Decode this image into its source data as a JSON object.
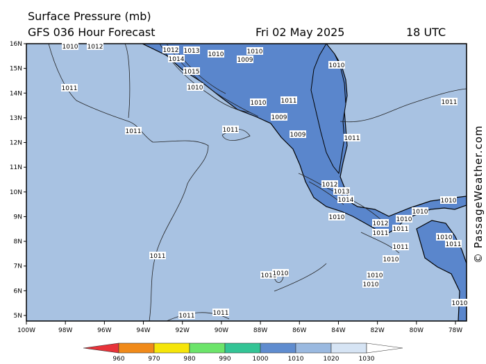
{
  "title": {
    "line1": "Surface Pressure (mb)",
    "line2": "GFS 036 Hour Forecast",
    "date": "Fri 02 May 2025",
    "time": "18 UTC"
  },
  "credit": "© PassageWeather.com",
  "colors": {
    "ocean": "#a8c2e2",
    "land": "#5a86cc",
    "coast": "#000000",
    "isobar": "#222222"
  },
  "lat_labels": [
    "16N",
    "15N",
    "14N",
    "13N",
    "12N",
    "11N",
    "10N",
    "9N",
    "8N",
    "7N",
    "6N",
    "5N"
  ],
  "lon_labels": [
    "100W",
    "98W",
    "96W",
    "94W",
    "92W",
    "90W",
    "88W",
    "86W",
    "84W",
    "82W",
    "80W",
    "78W"
  ],
  "isobar_labels": [
    {
      "text": "1010",
      "id": "a"
    },
    {
      "text": "1012",
      "id": "b"
    },
    {
      "text": "1011",
      "id": "c"
    },
    {
      "text": "1011",
      "id": "d"
    },
    {
      "text": "1011",
      "id": "e"
    },
    {
      "text": "1011",
      "id": "f"
    },
    {
      "text": "1011",
      "id": "g"
    },
    {
      "text": "1011",
      "id": "h"
    },
    {
      "text": "1011",
      "id": "i"
    },
    {
      "text": "1009",
      "id": "j"
    },
    {
      "text": "1010",
      "id": "k"
    },
    {
      "text": "1012",
      "id": "l"
    },
    {
      "text": "1013",
      "id": "m"
    },
    {
      "text": "1014",
      "id": "n"
    },
    {
      "text": "1015",
      "id": "o"
    },
    {
      "text": "1010",
      "id": "p"
    },
    {
      "text": "1009",
      "id": "q"
    },
    {
      "text": "1010",
      "id": "r"
    },
    {
      "text": "1010",
      "id": "s"
    },
    {
      "text": "1009",
      "id": "t"
    },
    {
      "text": "1012",
      "id": "u"
    },
    {
      "text": "1013",
      "id": "v"
    },
    {
      "text": "1014",
      "id": "w"
    },
    {
      "text": "1010",
      "id": "x"
    },
    {
      "text": "1012",
      "id": "y"
    },
    {
      "text": "1011",
      "id": "z"
    },
    {
      "text": "1010",
      "id": "aa"
    },
    {
      "text": "1011",
      "id": "ab"
    },
    {
      "text": "1010",
      "id": "ac"
    },
    {
      "text": "1010",
      "id": "ad"
    },
    {
      "text": "1010",
      "id": "ae"
    },
    {
      "text": "1010",
      "id": "af"
    },
    {
      "text": "1011",
      "id": "ag"
    },
    {
      "text": "1010",
      "id": "ah"
    },
    {
      "text": "1011",
      "id": "ai"
    },
    {
      "text": "1011",
      "id": "aj"
    },
    {
      "text": "1010",
      "id": "ak"
    },
    {
      "text": "1010",
      "id": "al"
    },
    {
      "text": "1010",
      "id": "am"
    },
    {
      "text": "1010",
      "id": "an"
    },
    {
      "text": "1011",
      "id": "ao"
    },
    {
      "text": "1011",
      "id": "ap"
    }
  ],
  "colorbar": {
    "ticks": [
      "960",
      "970",
      "980",
      "990",
      "1000",
      "1010",
      "1020",
      "1030"
    ],
    "colors": [
      "#e8333a",
      "#f08a1a",
      "#f5e50a",
      "#6ce46a",
      "#33c495",
      "#5f8ccf",
      "#9ab9e0",
      "#d6e4f4",
      "#ffffff"
    ]
  }
}
